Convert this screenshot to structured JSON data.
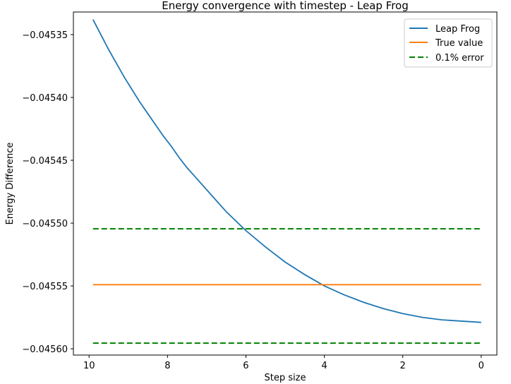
{
  "chart_data": {
    "type": "line",
    "title": "Energy convergence with timestep - Leap Frog",
    "xlabel": "Step size",
    "ylabel": "Energy Difference",
    "xlim": [
      10.4,
      -0.4
    ],
    "ylim": [
      -0.045605,
      -0.045332
    ],
    "x_inverted": true,
    "grid": false,
    "legend_position": "top-right",
    "xticks": [
      10,
      8,
      6,
      4,
      2,
      0
    ],
    "xtick_labels": [
      "10",
      "8",
      "6",
      "4",
      "2",
      "0"
    ],
    "yticks": [
      -0.04535,
      -0.0454,
      -0.04545,
      -0.0455,
      -0.04555,
      -0.0456
    ],
    "ytick_labels": [
      "−0.04535",
      "−0.04540",
      "−0.04545",
      "−0.04550",
      "−0.04555",
      "−0.04560"
    ],
    "series": [
      {
        "name": "Leap Frog",
        "color": "#1f77b4",
        "style": "solid",
        "x": [
          9.9,
          9.7,
          9.5,
          9.3,
          9.1,
          8.9,
          8.7,
          8.5,
          8.3,
          8.1,
          7.9,
          7.7,
          7.5,
          7.3,
          7.1,
          6.9,
          6.7,
          6.5,
          6.3,
          6.1,
          6.0,
          5.5,
          5.0,
          4.5,
          4.0,
          3.5,
          3.0,
          2.5,
          2.0,
          1.5,
          1.0,
          0.5,
          0.0
        ],
        "y": [
          -0.045338,
          -0.04535,
          -0.045362,
          -0.045373,
          -0.045384,
          -0.045394,
          -0.045404,
          -0.045413,
          -0.045422,
          -0.045431,
          -0.045439,
          -0.045448,
          -0.045456,
          -0.045463,
          -0.04547,
          -0.045477,
          -0.045484,
          -0.045491,
          -0.045497,
          -0.045503,
          -0.045506,
          -0.045519,
          -0.045531,
          -0.045541,
          -0.04555,
          -0.045557,
          -0.045563,
          -0.045568,
          -0.045572,
          -0.045575,
          -0.045577,
          -0.045578,
          -0.045579
        ]
      },
      {
        "name": "True value",
        "color": "#ff7f0e",
        "style": "solid",
        "x": [
          9.9,
          0.0
        ],
        "y": [
          -0.045549,
          -0.045549
        ]
      },
      {
        "name": "0.1% error",
        "color": "#008000",
        "style": "dashed",
        "x": [
          9.9,
          0.0
        ],
        "y": [
          -0.0455045,
          -0.0455045
        ]
      },
      {
        "name": "",
        "color": "#008000",
        "style": "dashed",
        "x": [
          9.9,
          0.0
        ],
        "y": [
          -0.0455955,
          -0.0455955
        ]
      }
    ]
  }
}
